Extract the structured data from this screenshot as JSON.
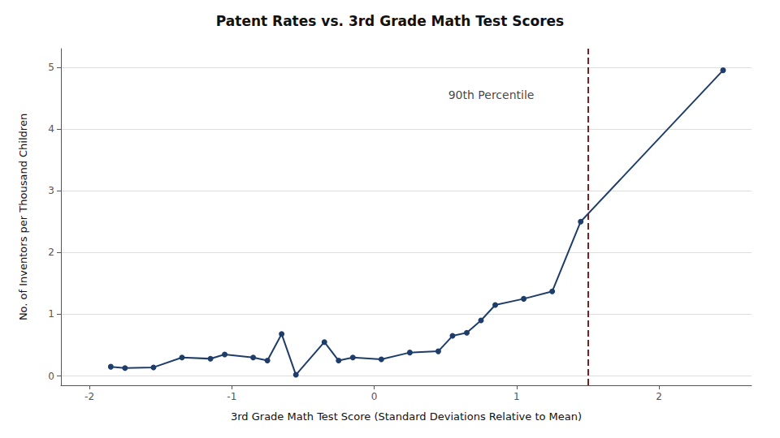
{
  "chart_data": {
    "type": "line",
    "title": "Patent Rates vs. 3rd Grade Math Test Scores",
    "xlabel": "3rd Grade Math Test Score (Standard Deviations Relative to Mean)",
    "ylabel": "No. of Inventors per Thousand Children",
    "x": [
      -1.85,
      -1.75,
      -1.55,
      -1.35,
      -1.15,
      -1.05,
      -0.85,
      -0.75,
      -0.65,
      -0.55,
      -0.35,
      -0.25,
      -0.15,
      0.05,
      0.25,
      0.45,
      0.55,
      0.65,
      0.75,
      0.85,
      1.05,
      1.25,
      1.45,
      2.45
    ],
    "values": [
      0.15,
      0.13,
      0.14,
      0.3,
      0.28,
      0.35,
      0.3,
      0.25,
      0.68,
      0.02,
      0.55,
      0.25,
      0.3,
      0.27,
      0.38,
      0.4,
      0.65,
      0.7,
      0.9,
      1.15,
      1.25,
      1.37,
      2.5,
      4.95
    ],
    "color": "#1f3d6b",
    "marker": "circle",
    "xlim": [
      -2.2,
      2.65
    ],
    "ylim": [
      -0.15,
      5.3
    ],
    "xticks": [
      -2,
      -1,
      0,
      1,
      2
    ],
    "yticks": [
      0,
      1,
      2,
      3,
      4,
      5
    ],
    "grid": true,
    "vlines": [
      {
        "x": 1.5,
        "color": "#7b2020",
        "line_style": "dashed"
      }
    ],
    "annotations": [
      {
        "text": "90th Percentile",
        "x": 0.52,
        "y": 4.55
      }
    ]
  }
}
